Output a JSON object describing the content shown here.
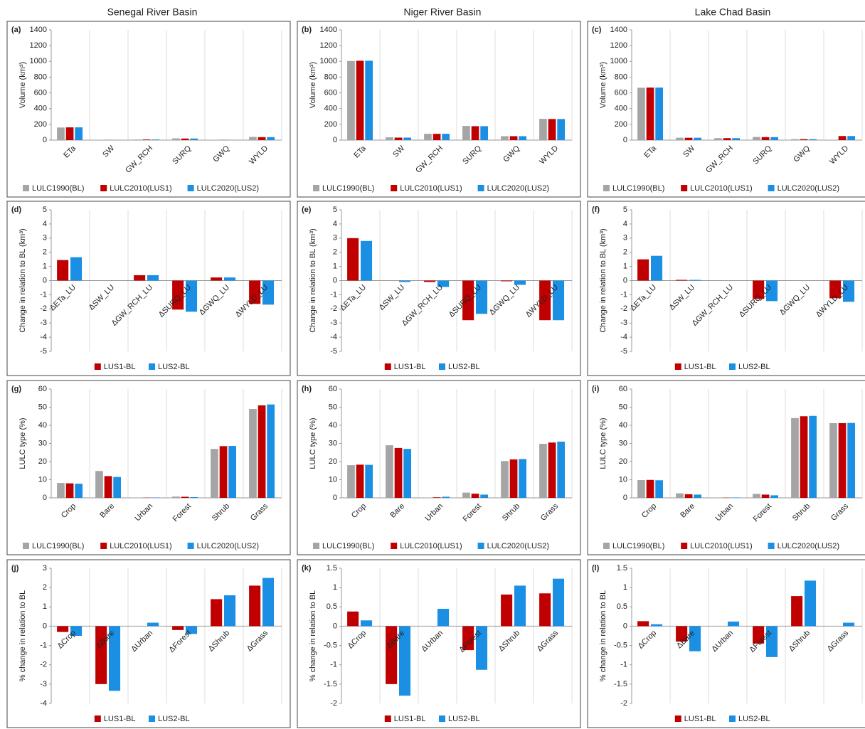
{
  "column_titles": [
    "Senegal River Basin",
    "Niger River Basin",
    "Lake Chad Basin"
  ],
  "chart_data": [
    {
      "type": "bar",
      "label": "(a)",
      "y_label": "Volume (km³)",
      "categories": [
        "ETa",
        "SW",
        "GW_RCH",
        "SURQ",
        "GWQ",
        "WYLD"
      ],
      "ylim": [
        0,
        1400
      ],
      "yticks": [
        0,
        200,
        400,
        600,
        800,
        1000,
        1200,
        1400
      ],
      "rotate_labels_at": "bottom",
      "series": [
        {
          "name": "LULC1990(BL)",
          "color": "#a5a5a5",
          "values": [
            160,
            1,
            8,
            22,
            2,
            40
          ]
        },
        {
          "name": "LULC2010(LUS1)",
          "color": "#c00000",
          "values": [
            162,
            1,
            8,
            20,
            2,
            38
          ]
        },
        {
          "name": "LULC2020(LUS2)",
          "color": "#1a8fe3",
          "values": [
            162,
            1,
            8,
            20,
            2,
            38
          ]
        }
      ]
    },
    {
      "type": "bar",
      "label": "(b)",
      "y_label": "Volume (km³)",
      "categories": [
        "ETa",
        "SW",
        "GW_RCH",
        "SURQ",
        "GWQ",
        "WYLD"
      ],
      "ylim": [
        0,
        1400
      ],
      "yticks": [
        0,
        200,
        400,
        600,
        800,
        1000,
        1200,
        1400
      ],
      "rotate_labels_at": "bottom",
      "series": [
        {
          "name": "LULC1990(BL)",
          "color": "#a5a5a5",
          "values": [
            1005,
            35,
            80,
            180,
            50,
            270
          ]
        },
        {
          "name": "LULC2010(LUS1)",
          "color": "#c00000",
          "values": [
            1008,
            32,
            80,
            177,
            50,
            268
          ]
        },
        {
          "name": "LULC2020(LUS2)",
          "color": "#1a8fe3",
          "values": [
            1008,
            32,
            80,
            177,
            50,
            268
          ]
        }
      ]
    },
    {
      "type": "bar",
      "label": "(c)",
      "y_label": "Volume (km³)",
      "categories": [
        "ETa",
        "SW",
        "GW_RCH",
        "SURQ",
        "GWQ",
        "WYLD"
      ],
      "ylim": [
        0,
        1400
      ],
      "yticks": [
        0,
        200,
        400,
        600,
        800,
        1000,
        1200,
        1400
      ],
      "rotate_labels_at": "bottom",
      "series": [
        {
          "name": "LULC1990(BL)",
          "color": "#a5a5a5",
          "values": [
            665,
            30,
            25,
            40,
            12,
            5
          ]
        },
        {
          "name": "LULC2010(LUS1)",
          "color": "#c00000",
          "values": [
            667,
            30,
            25,
            38,
            12,
            52
          ]
        },
        {
          "name": "LULC2020(LUS2)",
          "color": "#1a8fe3",
          "values": [
            667,
            30,
            25,
            38,
            12,
            52
          ]
        }
      ]
    },
    {
      "type": "bar",
      "label": "(d)",
      "y_label": "Change in relation to BL (km³)",
      "categories": [
        "ΔETa_LU",
        "ΔSW_LU",
        "ΔGW_RCH_LU",
        "ΔSURQ_LU",
        "ΔGWQ_LU",
        "ΔWYLD_LU"
      ],
      "ylim": [
        -5,
        5
      ],
      "yticks": [
        -5,
        -4,
        -3,
        -2,
        -1,
        0,
        1,
        2,
        3,
        4,
        5
      ],
      "rotate_labels_at": "zero",
      "series": [
        {
          "name": "LUS1-BL",
          "color": "#c00000",
          "values": [
            1.45,
            0,
            0.38,
            -2.05,
            0.22,
            -1.65
          ]
        },
        {
          "name": "LUS2-BL",
          "color": "#1a8fe3",
          "values": [
            1.65,
            0,
            0.38,
            -2.2,
            0.22,
            -1.7
          ]
        }
      ]
    },
    {
      "type": "bar",
      "label": "(e)",
      "y_label": "Change in relation to BL (km³)",
      "categories": [
        "ΔETa_LU",
        "ΔSW_LU",
        "ΔGW_RCH_LU",
        "ΔSURQ_LU",
        "ΔGWQ_LU",
        "ΔWYLD_LU"
      ],
      "ylim": [
        -5,
        5
      ],
      "yticks": [
        -5,
        -4,
        -3,
        -2,
        -1,
        0,
        1,
        2,
        3,
        4,
        5
      ],
      "rotate_labels_at": "zero",
      "series": [
        {
          "name": "LUS1-BL",
          "color": "#c00000",
          "values": [
            3.0,
            0,
            -0.1,
            -2.8,
            -0.05,
            -2.8
          ]
        },
        {
          "name": "LUS2-BL",
          "color": "#1a8fe3",
          "values": [
            2.8,
            -0.1,
            -0.45,
            -2.35,
            -0.3,
            -2.8
          ]
        }
      ]
    },
    {
      "type": "bar",
      "label": "(f)",
      "y_label": "Change in relation to BL (km³)",
      "categories": [
        "ΔETa_LU",
        "ΔSW_LU",
        "ΔGW_RCH_LU",
        "ΔSURQ_LU",
        "ΔGWQ_LU",
        "ΔWYLD_LU"
      ],
      "ylim": [
        -5,
        5
      ],
      "yticks": [
        -5,
        -4,
        -3,
        -2,
        -1,
        0,
        1,
        2,
        3,
        4,
        5
      ],
      "rotate_labels_at": "zero",
      "series": [
        {
          "name": "LUS1-BL",
          "color": "#c00000",
          "values": [
            1.5,
            0.05,
            0,
            -1.3,
            0,
            -1.25
          ]
        },
        {
          "name": "LUS2-BL",
          "color": "#1a8fe3",
          "values": [
            1.75,
            0.05,
            0,
            -1.45,
            0,
            -1.5
          ]
        }
      ]
    },
    {
      "type": "bar",
      "label": "(g)",
      "y_label": "LULC type (%)",
      "categories": [
        "Crop",
        "Bare",
        "Urban",
        "Forest",
        "Shrub",
        "Grass"
      ],
      "ylim": [
        0,
        60
      ],
      "yticks": [
        0,
        10,
        20,
        30,
        40,
        50,
        60
      ],
      "rotate_labels_at": "bottom",
      "series": [
        {
          "name": "LULC1990(BL)",
          "color": "#a5a5a5",
          "values": [
            8.2,
            14.8,
            0.1,
            0.7,
            27,
            49
          ]
        },
        {
          "name": "LULC2010(LUS1)",
          "color": "#c00000",
          "values": [
            8,
            12,
            0.1,
            0.6,
            28.5,
            51
          ]
        },
        {
          "name": "LULC2020(LUS2)",
          "color": "#1a8fe3",
          "values": [
            7.8,
            11.5,
            0.2,
            0.4,
            28.6,
            51.5
          ]
        }
      ]
    },
    {
      "type": "bar",
      "label": "(h)",
      "y_label": "LULC type (%)",
      "categories": [
        "Crop",
        "Bare",
        "Urban",
        "Forest",
        "Shrub",
        "Grass"
      ],
      "ylim": [
        0,
        60
      ],
      "yticks": [
        0,
        10,
        20,
        30,
        40,
        50,
        60
      ],
      "rotate_labels_at": "bottom",
      "series": [
        {
          "name": "LULC1990(BL)",
          "color": "#a5a5a5",
          "values": [
            18,
            29,
            0.2,
            2.9,
            20.3,
            29.8
          ]
        },
        {
          "name": "LULC2010(LUS1)",
          "color": "#c00000",
          "values": [
            18.3,
            27.5,
            0.3,
            2.3,
            21.2,
            30.5
          ]
        },
        {
          "name": "LULC2020(LUS2)",
          "color": "#1a8fe3",
          "values": [
            18.2,
            27,
            0.6,
            1.8,
            21.4,
            31
          ]
        }
      ]
    },
    {
      "type": "bar",
      "label": "(i)",
      "y_label": "LULC type (%)",
      "categories": [
        "Crop",
        "Bare",
        "Urban",
        "Forest",
        "Shrub",
        "Grass"
      ],
      "ylim": [
        0,
        60
      ],
      "yticks": [
        0,
        10,
        20,
        30,
        40,
        50,
        60
      ],
      "rotate_labels_at": "bottom",
      "series": [
        {
          "name": "LULC1990(BL)",
          "color": "#a5a5a5",
          "values": [
            9.8,
            2.5,
            0.1,
            2.2,
            44,
            41.2
          ]
        },
        {
          "name": "LULC2010(LUS1)",
          "color": "#c00000",
          "values": [
            9.9,
            2,
            0.1,
            1.8,
            45,
            41.2
          ]
        },
        {
          "name": "LULC2020(LUS2)",
          "color": "#1a8fe3",
          "values": [
            9.7,
            1.8,
            0.2,
            1.4,
            45.2,
            41.3
          ]
        }
      ]
    },
    {
      "type": "bar",
      "label": "(j)",
      "y_label": "% change in relation to BL",
      "categories": [
        "ΔCrop",
        "ΔBare",
        "ΔUrban",
        "ΔForest",
        "ΔShrub",
        "ΔGrass"
      ],
      "ylim": [
        -4,
        3
      ],
      "yticks": [
        -4,
        -3,
        -2,
        -1,
        0,
        1,
        2,
        3
      ],
      "rotate_labels_at": "zero",
      "series": [
        {
          "name": "LUS1-BL",
          "color": "#c00000",
          "values": [
            -0.3,
            -3,
            0,
            -0.2,
            1.4,
            2.1
          ]
        },
        {
          "name": "LUS2-BL",
          "color": "#1a8fe3",
          "values": [
            -0.5,
            -3.35,
            0.18,
            -0.4,
            1.6,
            2.5
          ]
        }
      ]
    },
    {
      "type": "bar",
      "label": "(k)",
      "y_label": "% change in relation to BL",
      "categories": [
        "ΔCrop",
        "ΔBare",
        "ΔUrban",
        "ΔForest",
        "ΔShrub",
        "ΔGrass"
      ],
      "ylim": [
        -2,
        1.5
      ],
      "yticks": [
        -2,
        -1.5,
        -1,
        -0.5,
        0,
        0.5,
        1,
        1.5
      ],
      "rotate_labels_at": "zero",
      "series": [
        {
          "name": "LUS1-BL",
          "color": "#c00000",
          "values": [
            0.38,
            -1.5,
            0,
            -0.62,
            0.82,
            0.85
          ]
        },
        {
          "name": "LUS2-BL",
          "color": "#1a8fe3",
          "values": [
            0.15,
            -1.8,
            0.45,
            -1.13,
            1.05,
            1.23
          ]
        }
      ]
    },
    {
      "type": "bar",
      "label": "(l)",
      "y_label": "% change in relation to BL",
      "categories": [
        "ΔCrop",
        "ΔBare",
        "ΔUrban",
        "ΔForest",
        "ΔShrub",
        "ΔGrass"
      ],
      "ylim": [
        -2,
        1.5
      ],
      "yticks": [
        -2,
        -1.5,
        -1,
        -0.5,
        0,
        0.5,
        1,
        1.5
      ],
      "rotate_labels_at": "zero",
      "series": [
        {
          "name": "LUS1-BL",
          "color": "#c00000",
          "values": [
            0.13,
            -0.4,
            0,
            -0.45,
            0.78,
            0
          ]
        },
        {
          "name": "LUS2-BL",
          "color": "#1a8fe3",
          "values": [
            0.05,
            -0.65,
            0.12,
            -0.8,
            1.18,
            0.09
          ]
        }
      ]
    }
  ]
}
